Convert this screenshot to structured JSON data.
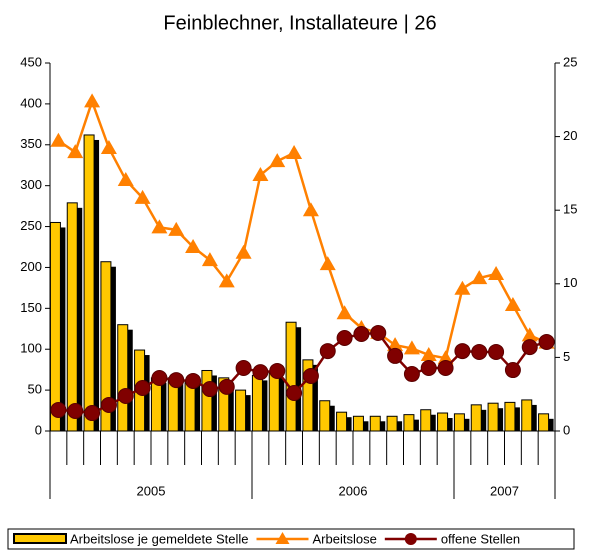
{
  "chart_data": {
    "type": "bar_line",
    "title": "Feinblechner, Installateure | 26",
    "categories": [
      null,
      null,
      null,
      null,
      null,
      null,
      null,
      null,
      null,
      null,
      null,
      null,
      null,
      null,
      null,
      null,
      null,
      null,
      null,
      null,
      null,
      null,
      null,
      null,
      null,
      null,
      null,
      null,
      null,
      null
    ],
    "groups": [
      {
        "label": "2005",
        "count": 12
      },
      {
        "label": "2006",
        "count": 12
      },
      {
        "label": "2007",
        "count": 6
      }
    ],
    "series": [
      {
        "name": "Arbeitslose je gemeldete Stelle",
        "type": "bar",
        "color": "#FFC800",
        "axis": "y",
        "values": [
          255,
          279,
          362,
          207,
          130,
          99,
          65,
          65,
          62,
          74,
          65,
          50,
          68,
          71,
          133,
          87,
          37,
          23,
          18,
          18,
          18,
          20,
          26,
          22,
          21,
          32,
          34,
          35,
          38,
          21
        ]
      },
      {
        "name": "Arbeitslose",
        "type": "line",
        "marker": "triangle",
        "color": "#FF8000",
        "axis": "y",
        "values": [
          355,
          341,
          403,
          346,
          307,
          285,
          249,
          246,
          225,
          209,
          183,
          218,
          313,
          330,
          340,
          270,
          204,
          144,
          126,
          120,
          105,
          101,
          93,
          89,
          174,
          187,
          192,
          154,
          117,
          108
        ]
      },
      {
        "name": "offene Stellen",
        "type": "line",
        "marker": "circle",
        "color": "#800000",
        "axis": "y2",
        "values": [
          1.43,
          1.36,
          1.22,
          1.77,
          2.38,
          2.92,
          3.6,
          3.46,
          3.4,
          2.85,
          3.0,
          4.28,
          4.0,
          4.08,
          2.58,
          3.74,
          5.43,
          6.32,
          6.59,
          6.66,
          5.1,
          3.87,
          4.28,
          4.28,
          5.43,
          5.37,
          5.37,
          4.14,
          5.7,
          6.05
        ]
      }
    ],
    "ylim": [
      0,
      450
    ],
    "yticks": [
      0,
      50,
      100,
      150,
      200,
      250,
      300,
      350,
      400,
      450
    ],
    "y2lim": [
      0,
      25
    ],
    "y2ticks": [
      0,
      5,
      10,
      15,
      20,
      25
    ],
    "legend": "bottom"
  }
}
